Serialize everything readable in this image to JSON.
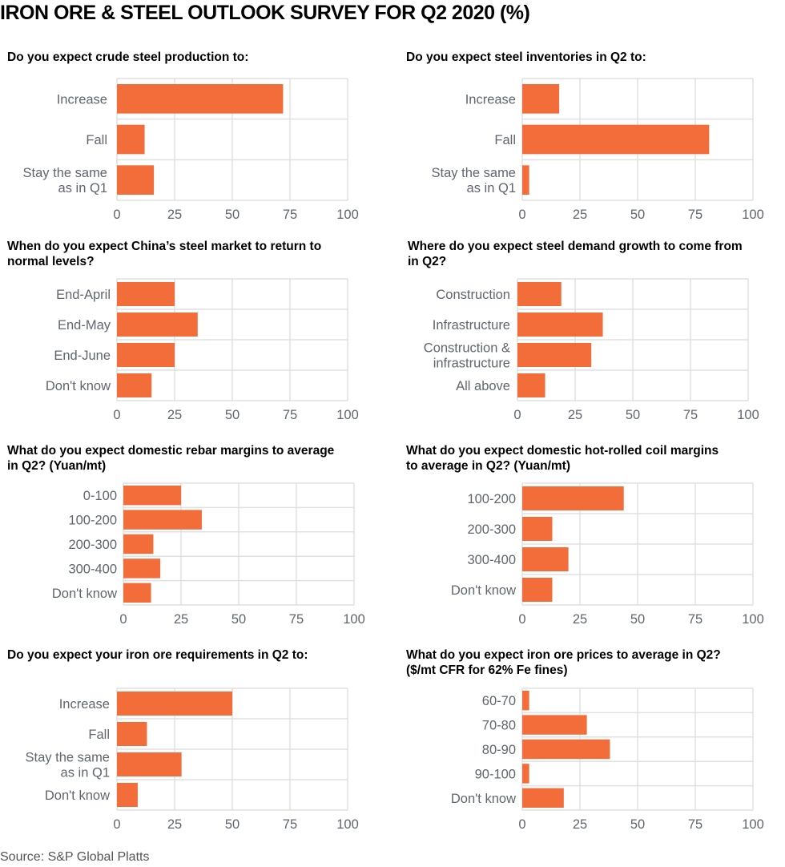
{
  "title": "IRON ORE & STEEL OUTLOOK SURVEY FOR Q2 2020 (%)",
  "source": "Source: S&P Global Platts",
  "colors": {
    "bar": "#F26D3A",
    "grid": "#E0E0E0",
    "label": "#5F6670"
  },
  "chart_data": [
    {
      "type": "bar",
      "orientation": "horizontal",
      "title": "Do you expect crude steel production to:",
      "categories": [
        [
          "Increase"
        ],
        [
          "Fall"
        ],
        [
          "Stay the same",
          "as in Q1"
        ]
      ],
      "values": [
        72,
        12,
        16
      ],
      "xlim": [
        0,
        100
      ],
      "xticks": [
        "0",
        "25",
        "50",
        "75",
        "100"
      ],
      "grid": true
    },
    {
      "type": "bar",
      "orientation": "horizontal",
      "title": "Do you expect steel inventories in Q2 to:",
      "categories": [
        [
          "Increase"
        ],
        [
          "Fall"
        ],
        [
          "Stay the same",
          "as in Q1"
        ]
      ],
      "values": [
        16,
        81,
        3
      ],
      "xlim": [
        0,
        100
      ],
      "xticks": [
        "0",
        "25",
        "50",
        "75",
        "100"
      ],
      "grid": true
    },
    {
      "type": "bar",
      "orientation": "horizontal",
      "title": "When do you expect China’s steel market to return to normal levels?",
      "title_lines": [
        "When do you expect China’s steel market to return to",
        "normal levels?"
      ],
      "categories": [
        [
          "End-April"
        ],
        [
          "End-May"
        ],
        [
          "End-June"
        ],
        [
          "Don't know"
        ]
      ],
      "values": [
        25,
        35,
        25,
        15
      ],
      "xlim": [
        0,
        100
      ],
      "xticks": [
        "0",
        "25",
        "50",
        "75",
        "100"
      ],
      "grid": true
    },
    {
      "type": "bar",
      "orientation": "horizontal",
      "title": "Where do you expect steel demand growth to come from in Q2?",
      "title_lines": [
        "Where do you expect steel demand growth to come from",
        "in Q2?"
      ],
      "categories": [
        [
          "Construction"
        ],
        [
          "Infrastructure"
        ],
        [
          "Construction &",
          "infrastructure"
        ],
        [
          "All above"
        ]
      ],
      "values": [
        19,
        37,
        32,
        12
      ],
      "xlim": [
        0,
        100
      ],
      "xticks": [
        "0",
        "25",
        "50",
        "75",
        "100"
      ],
      "grid": true
    },
    {
      "type": "bar",
      "orientation": "horizontal",
      "title": "What do you expect domestic rebar margins to average in Q2? (Yuan/mt)",
      "title_lines": [
        "What do you expect domestic rebar margins to average",
        "in Q2? (Yuan/mt)"
      ],
      "categories": [
        [
          "0-100"
        ],
        [
          "100-200"
        ],
        [
          "200-300"
        ],
        [
          "300-400"
        ],
        [
          "Don't know"
        ]
      ],
      "values": [
        25,
        34,
        13,
        16,
        12
      ],
      "xlim": [
        0,
        100
      ],
      "xticks": [
        "0",
        "25",
        "50",
        "75",
        "100"
      ],
      "grid": true
    },
    {
      "type": "bar",
      "orientation": "horizontal",
      "title": "What do you expect domestic hot-rolled coil margins to average in Q2? (Yuan/mt)",
      "title_lines": [
        "What do you expect domestic hot-rolled coil margins",
        "to average in Q2? (Yuan/mt)"
      ],
      "categories": [
        [
          "100-200"
        ],
        [
          "200-300"
        ],
        [
          "300-400"
        ],
        [
          "Don't know"
        ]
      ],
      "values": [
        44,
        13,
        20,
        13
      ],
      "xlim": [
        0,
        100
      ],
      "xticks": [
        "0",
        "25",
        "50",
        "75",
        "100"
      ],
      "grid": true
    },
    {
      "type": "bar",
      "orientation": "horizontal",
      "title": "Do you expect your iron ore requirements in Q2 to:",
      "categories": [
        [
          "Increase"
        ],
        [
          "Fall"
        ],
        [
          "Stay the same",
          "as in Q1"
        ],
        [
          "Don't know"
        ]
      ],
      "values": [
        50,
        13,
        28,
        9
      ],
      "xlim": [
        0,
        100
      ],
      "xticks": [
        "0",
        "25",
        "50",
        "75",
        "100"
      ],
      "grid": true
    },
    {
      "type": "bar",
      "orientation": "horizontal",
      "title": "What do you expect iron ore prices to average in Q2? ($/mt CFR for 62% Fe fines)",
      "title_lines": [
        "What do you expect iron ore prices to average in Q2?",
        "($/mt CFR for 62% Fe fines)"
      ],
      "categories": [
        [
          "60-70"
        ],
        [
          "70-80"
        ],
        [
          "80-90"
        ],
        [
          "90-100"
        ],
        [
          "Don't know"
        ]
      ],
      "values": [
        3,
        28,
        38,
        3,
        18
      ],
      "xlim": [
        0,
        100
      ],
      "xticks": [
        "0",
        "25",
        "50",
        "75",
        "100"
      ],
      "grid": true
    }
  ]
}
